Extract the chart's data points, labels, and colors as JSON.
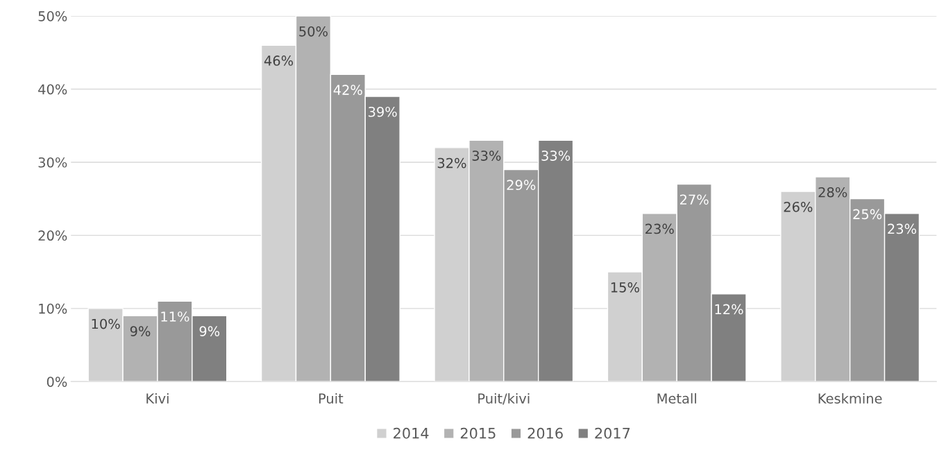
{
  "chart_data": {
    "type": "bar",
    "categories": [
      "Kivi",
      "Puit",
      "Puit/kivi",
      "Metall",
      "Keskmine"
    ],
    "series": [
      {
        "name": "2014",
        "color": "#d0d0d0",
        "values": [
          10,
          46,
          32,
          15,
          26
        ],
        "value_labels": [
          "10%",
          "46%",
          "32%",
          "15%",
          "26%"
        ]
      },
      {
        "name": "2015",
        "color": "#b2b2b2",
        "values": [
          9,
          50,
          33,
          23,
          28
        ],
        "value_labels": [
          "9%",
          "50%",
          "33%",
          "23%",
          "28%"
        ]
      },
      {
        "name": "2016",
        "color": "#999999",
        "values": [
          11,
          42,
          29,
          27,
          25
        ],
        "value_labels": [
          "11%",
          "42%",
          "29%",
          "27%",
          "25%"
        ]
      },
      {
        "name": "2017",
        "color": "#808080",
        "values": [
          9,
          39,
          33,
          12,
          23
        ],
        "value_labels": [
          "9%",
          "39%",
          "33%",
          "12%",
          "23%"
        ]
      }
    ],
    "ylim": [
      0,
      50
    ],
    "yticks": [
      {
        "value": 0,
        "label": "0%"
      },
      {
        "value": 10,
        "label": "10%"
      },
      {
        "value": 20,
        "label": "20%"
      },
      {
        "value": 30,
        "label": "30%"
      },
      {
        "value": 40,
        "label": "40%"
      },
      {
        "value": 50,
        "label": "50%"
      }
    ],
    "grid": "y",
    "legend": "bottom"
  }
}
